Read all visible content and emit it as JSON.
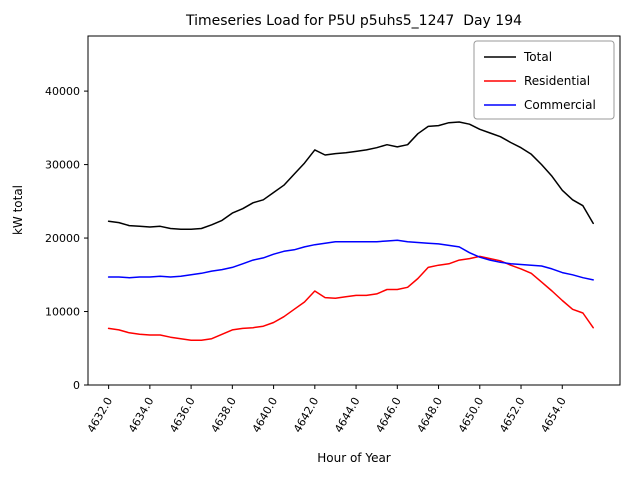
{
  "figure": {
    "background": "#ffffff"
  },
  "chart_data": {
    "type": "line",
    "title": "Timeseries Load for P5U p5uhs5_1247  Day 194",
    "xlabel": "Hour of Year",
    "ylabel": "kW total",
    "xlim": [
      4631.0,
      4656.8
    ],
    "ylim": [
      0,
      47500
    ],
    "grid": false,
    "legend_position": "upper right",
    "xticks": [
      4632,
      4634,
      4636,
      4638,
      4640,
      4642,
      4644,
      4646,
      4648,
      4650,
      4652,
      4654
    ],
    "xtick_labels": [
      "4632.0",
      "4634.0",
      "4636.0",
      "4638.0",
      "4640.0",
      "4642.0",
      "4644.0",
      "4646.0",
      "4648.0",
      "4650.0",
      "4652.0",
      "4654.0"
    ],
    "yticks": [
      0,
      10000,
      20000,
      30000,
      40000
    ],
    "ytick_labels": [
      "0",
      "10000",
      "20000",
      "30000",
      "40000"
    ],
    "x": [
      4632.0,
      4632.5,
      4633.0,
      4633.5,
      4634.0,
      4634.5,
      4635.0,
      4635.5,
      4636.0,
      4636.5,
      4637.0,
      4637.5,
      4638.0,
      4638.5,
      4639.0,
      4639.5,
      4640.0,
      4640.5,
      4641.0,
      4641.5,
      4642.0,
      4642.5,
      4643.0,
      4643.5,
      4644.0,
      4644.5,
      4645.0,
      4645.5,
      4646.0,
      4646.5,
      4647.0,
      4647.5,
      4648.0,
      4648.5,
      4649.0,
      4649.5,
      4650.0,
      4650.5,
      4651.0,
      4651.5,
      4652.0,
      4652.5,
      4653.0,
      4653.5,
      4654.0,
      4654.5,
      4655.0,
      4655.5
    ],
    "series": [
      {
        "name": "Total",
        "color": "#000000",
        "values": [
          22300,
          22100,
          21700,
          21600,
          21500,
          21600,
          21300,
          21200,
          21200,
          21300,
          21800,
          22400,
          23400,
          24000,
          24800,
          25200,
          26200,
          27200,
          28700,
          30200,
          32000,
          31300,
          31500,
          31600,
          31800,
          32000,
          32300,
          32700,
          32400,
          32700,
          34200,
          35200,
          35300,
          35700,
          35800,
          35500,
          34800,
          34300,
          33800,
          33000,
          32300,
          31400,
          30000,
          28400,
          26500,
          25200,
          24400,
          22000
        ]
      },
      {
        "name": "Residential",
        "color": "#ff0000",
        "values": [
          7700,
          7500,
          7100,
          6900,
          6800,
          6800,
          6500,
          6300,
          6100,
          6100,
          6300,
          6900,
          7500,
          7700,
          7800,
          8000,
          8500,
          9300,
          10300,
          11300,
          12800,
          11900,
          11800,
          12000,
          12200,
          12200,
          12400,
          13000,
          13000,
          13300,
          14500,
          16000,
          16300,
          16500,
          17000,
          17200,
          17500,
          17200,
          16900,
          16300,
          15800,
          15200,
          14000,
          12800,
          11500,
          10300,
          9800,
          7800
        ]
      },
      {
        "name": "Commercial",
        "color": "#0000ff",
        "values": [
          14700,
          14700,
          14600,
          14700,
          14700,
          14800,
          14700,
          14800,
          15000,
          15200,
          15500,
          15700,
          16000,
          16500,
          17000,
          17300,
          17800,
          18200,
          18400,
          18800,
          19100,
          19300,
          19500,
          19500,
          19500,
          19500,
          19500,
          19600,
          19700,
          19500,
          19400,
          19300,
          19200,
          19000,
          18800,
          18000,
          17400,
          17000,
          16700,
          16500,
          16400,
          16300,
          16200,
          15800,
          15300,
          15000,
          14600,
          14300
        ]
      }
    ]
  }
}
